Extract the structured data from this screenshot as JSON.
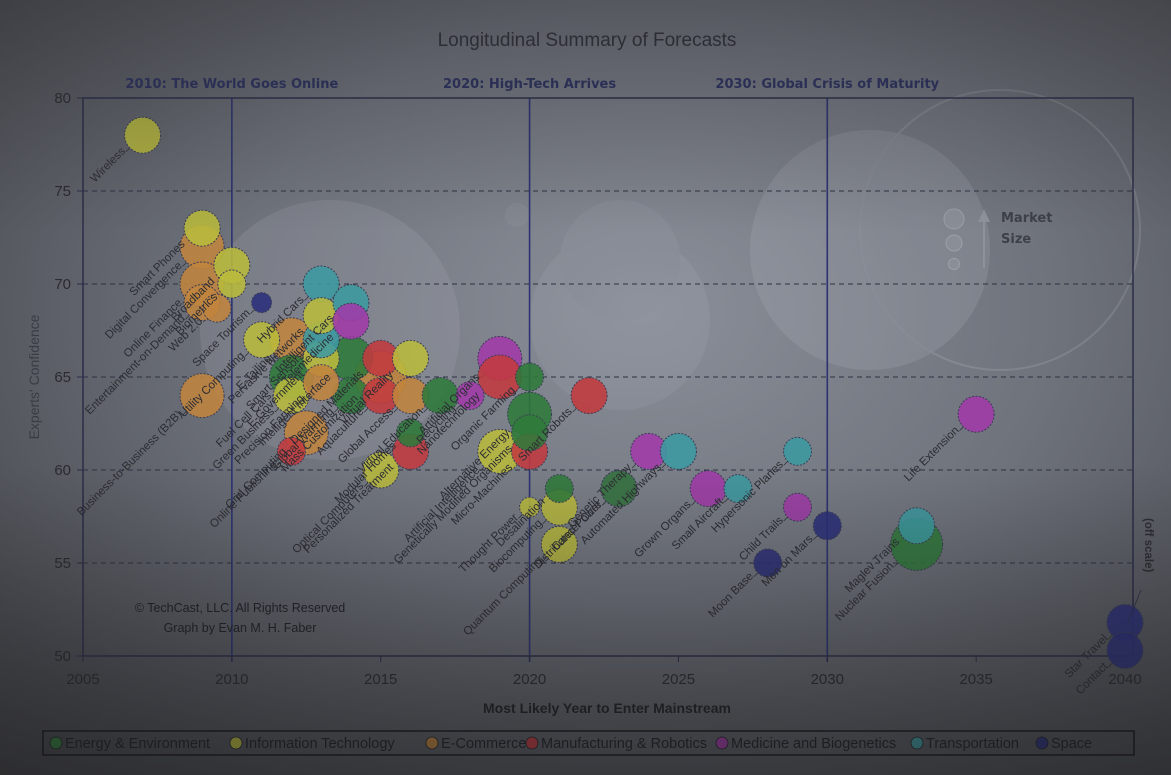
{
  "chart_data": {
    "type": "scatter",
    "subtype": "bubble",
    "title": "Longitudinal Summary of Forecasts",
    "xlabel": "Most Likely Year to Enter Mainstream",
    "ylabel": "Experts' Confidence",
    "xlim": [
      2005,
      2040
    ],
    "ylim": [
      50,
      80
    ],
    "xticks": [
      "2005",
      "2010",
      "2015",
      "2020",
      "2025",
      "2030",
      "2035",
      "2040"
    ],
    "yticks": [
      "50",
      "55",
      "60",
      "65",
      "70",
      "75",
      "80"
    ],
    "grid": "horizontal-dashed",
    "era_markers": [
      {
        "x": 2010,
        "label": "2010: The World Goes Online"
      },
      {
        "x": 2020,
        "label": "2020: High-Tech Arrives"
      },
      {
        "x": 2030,
        "label": "2030: Global Crisis of Maturity"
      }
    ],
    "size_legend": {
      "label_line1": "Market",
      "label_line2": "Size"
    },
    "off_scale_note": "(off scale)",
    "credits": [
      "© TechCast, LLC. All Rights Reserved",
      "Graph by Evan M. H. Faber"
    ],
    "legend_position": "bottom",
    "categories": [
      {
        "key": "energy",
        "name": "Energy & Environment",
        "color": "#2f7a3a"
      },
      {
        "key": "it",
        "name": "Information Technology",
        "color": "#b9bb3c"
      },
      {
        "key": "ecom",
        "name": "E-Commerce",
        "color": "#c0843e"
      },
      {
        "key": "mfg",
        "name": "Manufacturing & Robotics",
        "color": "#c23a3f"
      },
      {
        "key": "med",
        "name": "Medicine and Biogenetics",
        "color": "#a13aa8"
      },
      {
        "key": "trans",
        "name": "Transportation",
        "color": "#3c9aa0"
      },
      {
        "key": "space",
        "name": "Space",
        "color": "#2a2f7a"
      }
    ],
    "points": [
      {
        "label": "Wireless",
        "cat": "it",
        "x": 2007,
        "y": 78,
        "size": 3
      },
      {
        "label": "Smart Phones",
        "cat": "it",
        "x": 2009,
        "y": 73,
        "size": 3
      },
      {
        "label": "Digital Convergence",
        "cat": "ecom",
        "x": 2009,
        "y": 72,
        "size": 4
      },
      {
        "label": "Online Finance",
        "cat": "ecom",
        "x": 2009,
        "y": 70,
        "size": 4
      },
      {
        "label": "Entertainment-on-Demand",
        "cat": "ecom",
        "x": 2009,
        "y": 69,
        "size": 3
      },
      {
        "label": "Web 2.0",
        "cat": "ecom",
        "x": 2009.5,
        "y": 68.7,
        "size": 2
      },
      {
        "label": "Broadband",
        "cat": "it",
        "x": 2010,
        "y": 71,
        "size": 3
      },
      {
        "label": "Biometrics",
        "cat": "it",
        "x": 2010,
        "y": 70,
        "size": 2
      },
      {
        "label": "Space Tourism",
        "cat": "space",
        "x": 2011,
        "y": 69,
        "size": 1
      },
      {
        "label": "Utility Computing",
        "cat": "it",
        "x": 2011,
        "y": 67,
        "size": 3
      },
      {
        "label": "Business-to-Business (B2B)",
        "cat": "ecom",
        "x": 2009,
        "y": 64,
        "size": 4
      },
      {
        "label": "E-Tailing",
        "cat": "ecom",
        "x": 2012,
        "y": 67,
        "size": 4
      },
      {
        "label": "Fuel Cell Cars",
        "cat": "energy",
        "x": 2012,
        "y": 65,
        "size": 4
      },
      {
        "label": "Green Business",
        "cat": "it",
        "x": 2012,
        "y": 64,
        "size": 3
      },
      {
        "label": "Grid Computing",
        "cat": "ecom",
        "x": 2012.5,
        "y": 62,
        "size": 4
      },
      {
        "label": "Online Publishing",
        "cat": "mfg",
        "x": 2012,
        "y": 61,
        "size": 2
      },
      {
        "label": "E-Government",
        "cat": "it",
        "x": 2013,
        "y": 66,
        "size": 3
      },
      {
        "label": "Smart Sensors",
        "cat": "trans",
        "x": 2013,
        "y": 67,
        "size": 3
      },
      {
        "label": "Hybrid Cars",
        "cat": "trans",
        "x": 2013,
        "y": 70,
        "size": 3
      },
      {
        "label": "Pervasive Networks",
        "cat": "it",
        "x": 2013,
        "y": 68.3,
        "size": 3
      },
      {
        "label": "Intelligent Cars",
        "cat": "trans",
        "x": 2014,
        "y": 69,
        "size": 3
      },
      {
        "label": "Telemedicine",
        "cat": "med",
        "x": 2014,
        "y": 68,
        "size": 3
      },
      {
        "label": "Intelligent Interface",
        "cat": "energy",
        "x": 2014,
        "y": 66,
        "size": 4
      },
      {
        "label": "Global Warming",
        "cat": "energy",
        "x": 2014,
        "y": 64,
        "size": 3
      },
      {
        "label": "Precision Farming",
        "cat": "ecom",
        "x": 2013,
        "y": 64.7,
        "size": 3
      },
      {
        "label": "Mass Customization",
        "cat": "ecom",
        "x": 2015,
        "y": 65,
        "size": 5
      },
      {
        "label": "Designed Materials",
        "cat": "mfg",
        "x": 2015,
        "y": 66,
        "size": 3
      },
      {
        "label": "Aquaculture",
        "cat": "mfg",
        "x": 2015,
        "y": 64,
        "size": 3
      },
      {
        "label": "Virtual Reality",
        "cat": "it",
        "x": 2016,
        "y": 66,
        "size": 3
      },
      {
        "label": "Global Access",
        "cat": "ecom",
        "x": 2016,
        "y": 64,
        "size": 3
      },
      {
        "label": "Virtual Education",
        "cat": "energy",
        "x": 2017,
        "y": 64,
        "size": 3
      },
      {
        "label": "Optical Computers",
        "cat": "it",
        "x": 2015,
        "y": 60,
        "size": 3
      },
      {
        "label": "Modular Homes",
        "cat": "energy",
        "x": 2016,
        "y": 62,
        "size": 2
      },
      {
        "label": "Recycling",
        "cat": "med",
        "x": 2018,
        "y": 64,
        "size": 2
      },
      {
        "label": "Personalized Treatment",
        "cat": "mfg",
        "x": 2016,
        "y": 61,
        "size": 3
      },
      {
        "label": "Artificial Organs",
        "cat": "med",
        "x": 2019,
        "y": 66,
        "size": 4
      },
      {
        "label": "Nanotechnology",
        "cat": "mfg",
        "x": 2019,
        "y": 65,
        "size": 4
      },
      {
        "label": "Organic Farming",
        "cat": "energy",
        "x": 2020,
        "y": 65,
        "size": 2
      },
      {
        "label": "Artificial Intelligence",
        "cat": "it",
        "x": 2019,
        "y": 61,
        "size": 4
      },
      {
        "label": "Alternative Energy",
        "cat": "energy",
        "x": 2020,
        "y": 63,
        "size": 4
      },
      {
        "label": "Micro-Machines",
        "cat": "mfg",
        "x": 2020,
        "y": 61,
        "size": 3
      },
      {
        "label": "Smart Robots",
        "cat": "mfg",
        "x": 2022,
        "y": 64,
        "size": 3
      },
      {
        "label": "Genetically Modified Organisms",
        "cat": "energy",
        "x": 2020,
        "y": 62,
        "size": 3
      },
      {
        "label": "Thought Power",
        "cat": "it",
        "x": 2020,
        "y": 58,
        "size": 1
      },
      {
        "label": "Biocomputing",
        "cat": "it",
        "x": 2021,
        "y": 58,
        "size": 3
      },
      {
        "label": "Desalination",
        "cat": "energy",
        "x": 2021,
        "y": 59,
        "size": 2
      },
      {
        "label": "Quantum Computing",
        "cat": "it",
        "x": 2021,
        "y": 56,
        "size": 3
      },
      {
        "label": "Cancer Cure",
        "cat": "med",
        "x": 2023,
        "y": 59,
        "size": 3
      },
      {
        "label": "Distributed Power",
        "cat": "energy",
        "x": 2023,
        "y": 59,
        "size": 3
      },
      {
        "label": "Genetic Therapy",
        "cat": "med",
        "x": 2024,
        "y": 61,
        "size": 3
      },
      {
        "label": "Automated Highways",
        "cat": "trans",
        "x": 2025,
        "y": 61,
        "size": 3
      },
      {
        "label": "Grown Organs",
        "cat": "med",
        "x": 2026,
        "y": 59,
        "size": 3
      },
      {
        "label": "Small Aircraft",
        "cat": "trans",
        "x": 2027,
        "y": 59,
        "size": 2
      },
      {
        "label": "Hypersonic Planes",
        "cat": "trans",
        "x": 2029,
        "y": 61,
        "size": 2
      },
      {
        "label": "Child Trails",
        "cat": "med",
        "x": 2029,
        "y": 58,
        "size": 2
      },
      {
        "label": "Moon Base",
        "cat": "space",
        "x": 2028,
        "y": 55,
        "size": 2
      },
      {
        "label": "Men on Mars",
        "cat": "space",
        "x": 2030,
        "y": 57,
        "size": 2
      },
      {
        "label": "Nuclear Fusion",
        "cat": "energy",
        "x": 2033,
        "y": 56,
        "size": 5
      },
      {
        "label": "Maglev Trains",
        "cat": "trans",
        "x": 2033,
        "y": 57,
        "size": 3
      },
      {
        "label": "Life Extension",
        "cat": "med",
        "x": 2035,
        "y": 63,
        "size": 3
      },
      {
        "label": "Star Travel",
        "cat": "space",
        "x": 2040,
        "y": 51.8,
        "size": 3
      },
      {
        "label": "Contact",
        "cat": "space",
        "x": 2040,
        "y": 50.3,
        "size": 3
      }
    ]
  }
}
